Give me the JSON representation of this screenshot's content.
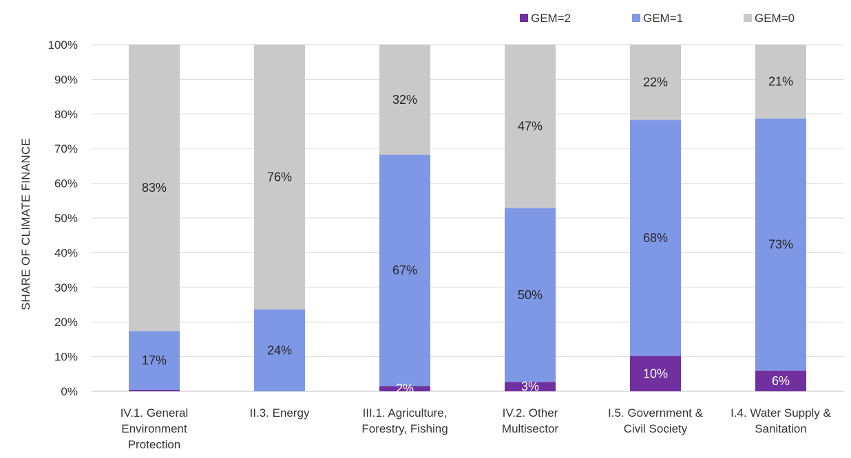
{
  "chart_data": {
    "type": "bar",
    "stacked": true,
    "title": "",
    "xlabel": "",
    "ylabel": "SHARE OF CLIMATE FINANCE",
    "ylim": [
      0,
      100
    ],
    "yticks": [
      "0%",
      "10%",
      "20%",
      "30%",
      "40%",
      "50%",
      "60%",
      "70%",
      "80%",
      "90%",
      "100%"
    ],
    "grid": true,
    "legend_position": "top-right",
    "categories": [
      [
        "IV.1. General",
        "Environment",
        "Protection"
      ],
      [
        "II.3. Energy"
      ],
      [
        "III.1. Agriculture,",
        "Forestry, Fishing"
      ],
      [
        "IV.2. Other",
        "Multisector"
      ],
      [
        "I.5. Government &",
        "Civil Society"
      ],
      [
        "I.4. Water Supply &",
        "Sanitation"
      ]
    ],
    "series": [
      {
        "name": "GEM=2",
        "color": "#7030a0",
        "label_color": "#ffffff",
        "values": [
          0.4,
          0,
          1.5,
          2.7,
          10.2,
          6.0
        ],
        "labels": [
          "",
          "",
          "2%",
          "3%",
          "10%",
          "6%"
        ]
      },
      {
        "name": "GEM=1",
        "color": "#7f98e6",
        "label_color": "#262626",
        "values": [
          17.0,
          23.6,
          66.8,
          50.2,
          68.1,
          72.7
        ],
        "labels": [
          "17%",
          "24%",
          "67%",
          "50%",
          "68%",
          "73%"
        ]
      },
      {
        "name": "GEM=0",
        "color": "#c9c9c9",
        "label_color": "#262626",
        "values": [
          82.6,
          76.4,
          31.7,
          47.1,
          21.7,
          21.3
        ],
        "labels": [
          "83%",
          "76%",
          "32%",
          "47%",
          "22%",
          "21%"
        ]
      }
    ]
  }
}
